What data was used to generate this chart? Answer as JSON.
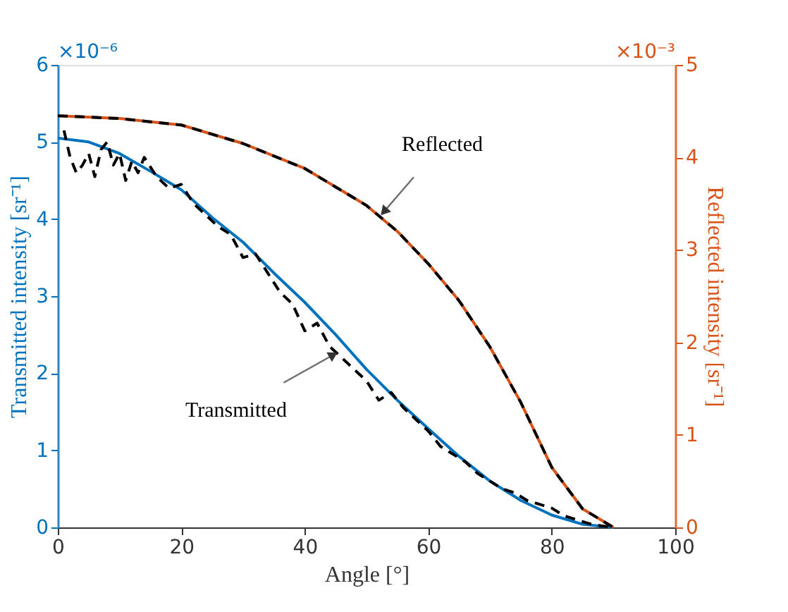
{
  "chart_data": {
    "type": "line",
    "xlabel": "Angle [°]",
    "ylabel": "Transmitted intensity [sr⁻¹]",
    "y2label": "Reflected intensity [sr⁻¹]",
    "xlim": [
      0,
      100
    ],
    "xticks": [
      0,
      20,
      40,
      60,
      80,
      100
    ],
    "ylim": [
      0,
      6
    ],
    "yticks": [
      0,
      1,
      2,
      3,
      4,
      5,
      6
    ],
    "y2lim": [
      0,
      5
    ],
    "y2ticks": [
      0,
      1,
      2,
      3,
      4,
      5
    ],
    "grid": false,
    "marker": "none",
    "annotations": [
      "×10⁻⁶",
      "×10⁻³",
      {
        "text": "Transmitted",
        "x": 46,
        "y": 2.3
      },
      {
        "text": "Reflected",
        "x": 52,
        "y": 4.02
      }
    ],
    "series": [
      {
        "color": "#0072bd",
        "line_style": "solid",
        "x": [
          0,
          5,
          10,
          15,
          20,
          25,
          30,
          35,
          40,
          45,
          50,
          55,
          60,
          65,
          70,
          75,
          80,
          85,
          90
        ],
        "values": [
          5.05,
          5.0,
          4.85,
          4.62,
          4.38,
          4.02,
          3.7,
          3.3,
          2.92,
          2.5,
          2.05,
          1.65,
          1.28,
          0.92,
          0.6,
          0.35,
          0.16,
          0.04,
          0
        ]
      },
      {
        "color": "#000000",
        "line_style": "dashed",
        "x": [
          1,
          2,
          3,
          4,
          5,
          6,
          7,
          8,
          9,
          10,
          11,
          12,
          13,
          14,
          16,
          18,
          20,
          22,
          24,
          26,
          28,
          30,
          32,
          34,
          36,
          38,
          40,
          42,
          44,
          46,
          48,
          50,
          52,
          54,
          56,
          58,
          60,
          62,
          64,
          66,
          68,
          70,
          72,
          74,
          76,
          78,
          80,
          82,
          84,
          86,
          88,
          90
        ],
        "values": [
          5.15,
          4.8,
          4.6,
          4.7,
          4.85,
          4.55,
          4.9,
          5.0,
          4.7,
          4.85,
          4.5,
          4.75,
          4.6,
          4.8,
          4.55,
          4.4,
          4.45,
          4.2,
          4.05,
          3.9,
          3.8,
          3.5,
          3.55,
          3.3,
          3.05,
          2.9,
          2.55,
          2.65,
          2.35,
          2.2,
          2.05,
          1.9,
          1.65,
          1.75,
          1.55,
          1.4,
          1.25,
          1.05,
          0.95,
          0.85,
          0.7,
          0.6,
          0.5,
          0.45,
          0.35,
          0.3,
          0.25,
          0.15,
          0.1,
          0.05,
          0.02,
          0
        ]
      },
      {
        "color": "#d95319",
        "line_style": "solid",
        "axis": "y2",
        "x": [
          0,
          10,
          20,
          30,
          40,
          50,
          55,
          60,
          65,
          70,
          75,
          80,
          85,
          90
        ],
        "values": [
          4.45,
          4.42,
          4.35,
          4.15,
          3.88,
          3.48,
          3.2,
          2.85,
          2.45,
          1.95,
          1.35,
          0.65,
          0.2,
          0
        ]
      },
      {
        "color": "#000000",
        "line_style": "dashed",
        "axis": "y2",
        "x": [
          0,
          10,
          20,
          30,
          40,
          50,
          55,
          60,
          65,
          70,
          75,
          80,
          85,
          90
        ],
        "values": [
          4.45,
          4.42,
          4.35,
          4.15,
          3.88,
          3.48,
          3.2,
          2.85,
          2.45,
          1.95,
          1.35,
          0.65,
          0.2,
          0
        ]
      }
    ]
  }
}
